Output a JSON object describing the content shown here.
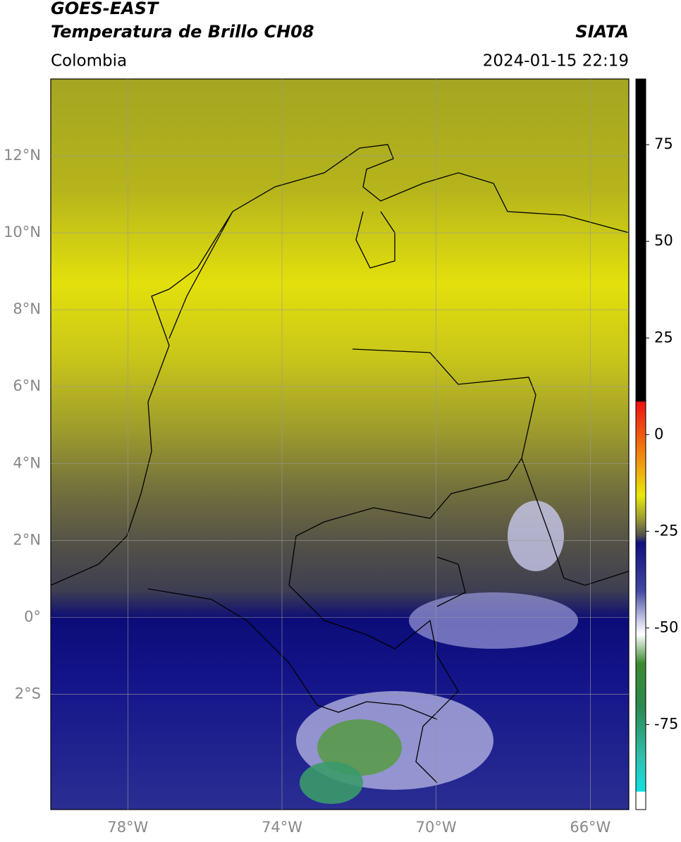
{
  "header": {
    "title": "GOES-EAST",
    "subtitle": "Temperatura de Brillo CH08",
    "source": "SIATA",
    "region": "Colombia",
    "timestamp": "2024-01-15 22:19"
  },
  "map": {
    "xlim": [
      -80,
      -65
    ],
    "ylim": [
      -5,
      14
    ],
    "grid": true,
    "xticks": [
      {
        "value": -78,
        "label": "78°W"
      },
      {
        "value": -74,
        "label": "74°W"
      },
      {
        "value": -70,
        "label": "70°W"
      },
      {
        "value": -66,
        "label": "66°W"
      }
    ],
    "yticks": [
      {
        "value": 12,
        "label": "12°N"
      },
      {
        "value": 10,
        "label": "10°N"
      },
      {
        "value": 8,
        "label": "8°N"
      },
      {
        "value": 6,
        "label": "6°N"
      },
      {
        "value": 4,
        "label": "4°N"
      },
      {
        "value": 2,
        "label": "2°N"
      },
      {
        "value": 0,
        "label": "0°"
      },
      {
        "value": -2,
        "label": "2°S"
      }
    ]
  },
  "colorbar": {
    "lim": [
      -97,
      92
    ],
    "ticks": [
      75,
      50,
      25,
      0,
      -25,
      -50,
      -75
    ]
  }
}
